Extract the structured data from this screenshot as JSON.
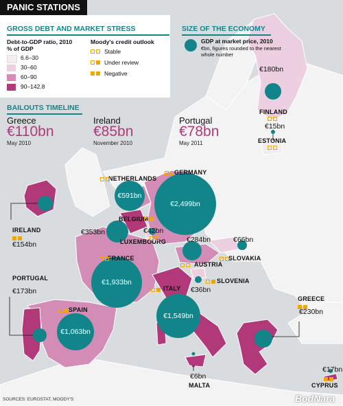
{
  "title": "PANIC STATIONS",
  "sections": {
    "debt": "GROSS DEBT AND MARKET STRESS",
    "size": "SIZE OF THE ECONOMY",
    "bailouts": "BAILOUTS TIMELINE"
  },
  "debt_legend": {
    "heading_line1": "Debt-to-GDP ratio, 2010",
    "heading_line2": "% of GDP",
    "items": [
      {
        "label": "6.6–30",
        "color": "#f3eef2"
      },
      {
        "label": "30–60",
        "color": "#eccfe0"
      },
      {
        "label": "60–90",
        "color": "#d38cb5"
      },
      {
        "label": "90–142.8",
        "color": "#b1397a"
      }
    ]
  },
  "moody_legend": {
    "heading": "Moody's credit outlook",
    "items": [
      {
        "label": "Stable",
        "pattern": "oo"
      },
      {
        "label": "Under review",
        "pattern": "of"
      },
      {
        "label": "Negative",
        "pattern": "ff"
      }
    ]
  },
  "size_legend": {
    "heading": "GDP at market price, 2010",
    "note_line1": "€bn, figures rounded to the nearest",
    "note_line2": "whole number"
  },
  "bailouts": [
    {
      "country": "Greece",
      "amount": "€110bn",
      "date": "May 2010"
    },
    {
      "country": "Ireland",
      "amount": "€85bn",
      "date": "November 2010"
    },
    {
      "country": "Portugal",
      "amount": "€78bn",
      "date": "May 2011"
    }
  ],
  "countries": [
    {
      "name": "FINLAND",
      "gdp": "€180bn",
      "rating": "oo"
    },
    {
      "name": "ESTONIA",
      "gdp": "€15bn",
      "rating": "oo"
    },
    {
      "name": "GERMANY",
      "gdp": "€2,499bn",
      "rating": "oo"
    },
    {
      "name": "NETHERLANDS",
      "gdp": "€591bn",
      "rating": "oo"
    },
    {
      "name": "BELGIUM",
      "gdp": "€353bn",
      "rating": "of"
    },
    {
      "name": "LUXEMBOURG",
      "gdp": "€42bn",
      "rating": "oo"
    },
    {
      "name": "IRELAND",
      "gdp": "€154bn",
      "rating": "ff"
    },
    {
      "name": "FRANCE",
      "gdp": "€1,933bn",
      "rating": "oo"
    },
    {
      "name": "AUSTRIA",
      "gdp": "€284bn",
      "rating": "oo"
    },
    {
      "name": "SLOVAKIA",
      "gdp": "€66bn",
      "rating": "oo"
    },
    {
      "name": "SLOVENIA",
      "gdp": "€36bn",
      "rating": "of"
    },
    {
      "name": "ITALY",
      "gdp": "€1,549bn",
      "rating": "of"
    },
    {
      "name": "PORTUGAL",
      "gdp": "€173bn",
      "rating": "ff"
    },
    {
      "name": "SPAIN",
      "gdp": "€1,063bn",
      "rating": "of"
    },
    {
      "name": "GREECE",
      "gdp": "€230bn",
      "rating": "ff"
    },
    {
      "name": "MALTA",
      "gdp": "€6bn",
      "rating": "oo"
    },
    {
      "name": "CYPRUS",
      "gdp": "€17bn",
      "rating": "ff"
    }
  ],
  "colors": {
    "teal": "#11858a",
    "magenta": "#b1397a",
    "rating": "#f0a800",
    "land": "#f4f4f4",
    "sea": "#d9dcdf"
  },
  "sources": "SOURCES: EUROSTAT, MOODY'S",
  "watermark": "BodNara"
}
